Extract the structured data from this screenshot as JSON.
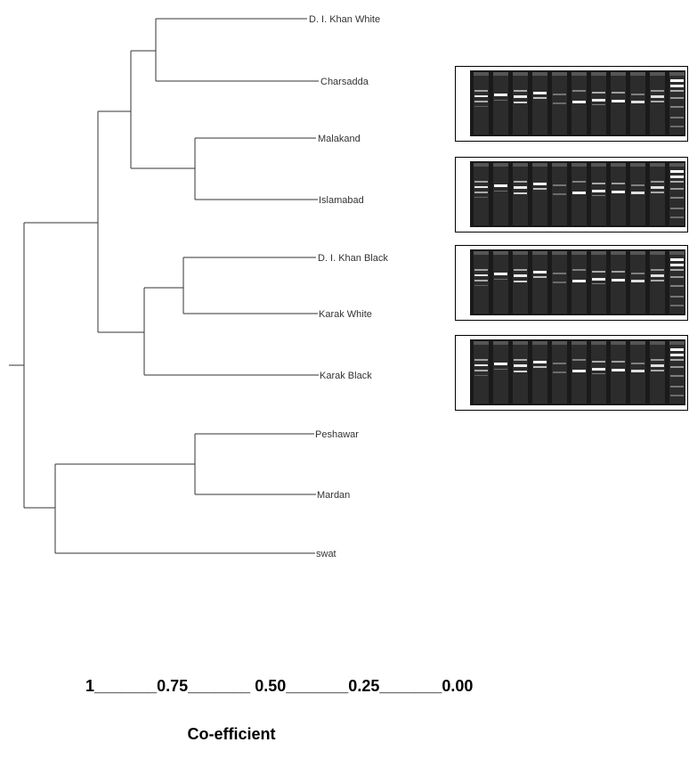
{
  "dendrogram": {
    "leaves": [
      "D. I. Khan White",
      "Charsadda",
      "Malakand",
      "Islamabad",
      "D. I. Khan Black",
      "Karak White",
      "Karak Black",
      "Peshawar",
      "Mardan",
      "swat"
    ]
  },
  "gel_panels": [
    {
      "name": "gel-image-1"
    },
    {
      "name": "gel-image-2"
    },
    {
      "name": "gel-image-3"
    },
    {
      "name": "gel-image-4"
    }
  ],
  "axis": {
    "scale_text": "1_______0.75_______ 0.50_______0.25_______0.00",
    "title": "Co-efficient"
  },
  "colors": {
    "line": "#333333",
    "gel_background": "#1a1a1a",
    "band": "#ffffff"
  }
}
